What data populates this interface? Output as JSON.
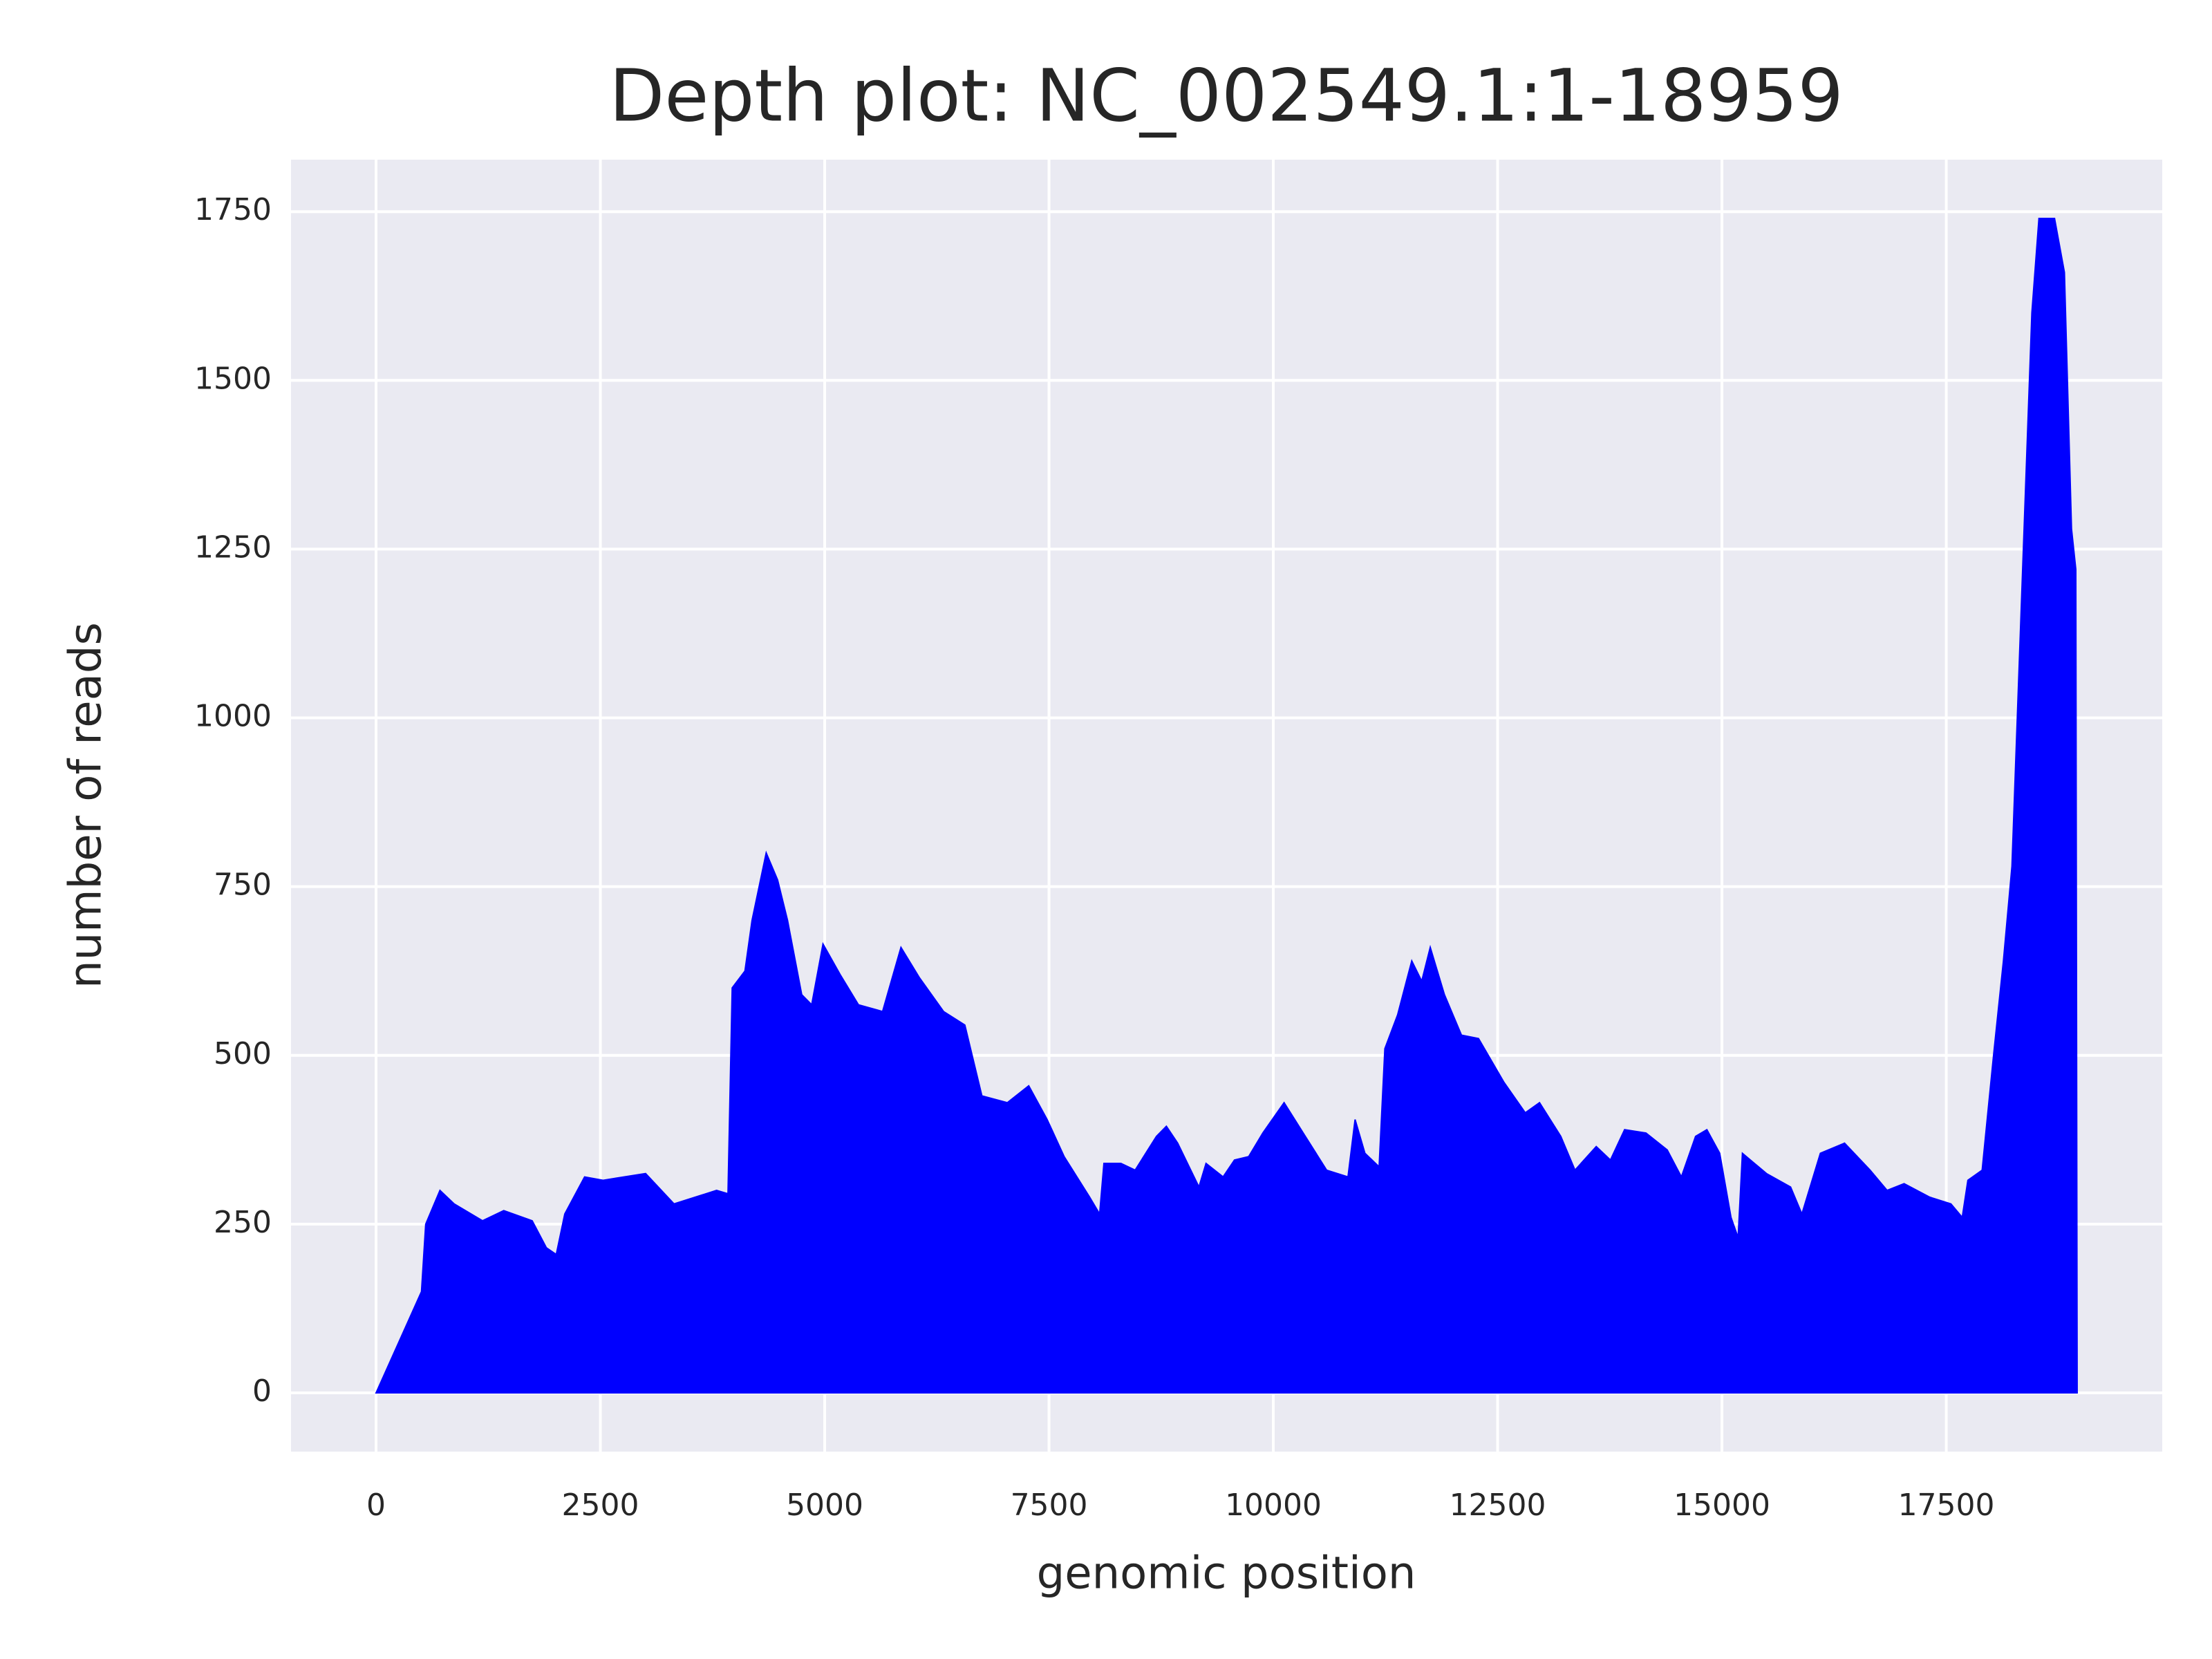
{
  "chart_data": {
    "type": "area",
    "title": "Depth plot: NC_002549.1:1-18959",
    "x_label": "genomic position",
    "y_label": "number of reads",
    "color": "#0000ff",
    "grid": true,
    "x": [
      0,
      506,
      553,
      712,
      870,
      1186,
      1423,
      1740,
      1898,
      2008,
      2103,
      2324,
      2530,
      3004,
      3321,
      3795,
      3922,
      3969,
      4111,
      4190,
      4348,
      4475,
      4586,
      4744,
      4855,
      4981,
      5171,
      5376,
      5645,
      5850,
      6056,
      6325,
      6562,
      6752,
      7036,
      7274,
      7479,
      7669,
      7953,
      8064,
      8112,
      8301,
      8460,
      8697,
      8808,
      8934,
      9171,
      9250,
      9440,
      9567,
      9725,
      9883,
      10120,
      10357,
      10594,
      10832,
      10911,
      11021,
      11179,
      11243,
      11385,
      11543,
      11654,
      11749,
      11907,
      12097,
      12287,
      12571,
      12808,
      12967,
      13204,
      13362,
      13599,
      13757,
      13915,
      14153,
      14390,
      14548,
      14706,
      14832,
      14975,
      15101,
      15180,
      15228,
      15496,
      15765,
      15891,
      16097,
      16366,
      16651,
      16841,
      17030,
      17315,
      17552,
      17678,
      17741,
      17900,
      18027,
      18137,
      18232,
      18343,
      18454,
      18533,
      18707,
      18817,
      18896,
      18944,
      18959
    ],
    "values": [
      0,
      150,
      250,
      300,
      280,
      255,
      270,
      255,
      215,
      205,
      265,
      320,
      315,
      325,
      280,
      300,
      295,
      600,
      625,
      700,
      800,
      760,
      700,
      590,
      575,
      665,
      620,
      575,
      565,
      660,
      615,
      565,
      545,
      440,
      430,
      455,
      405,
      350,
      290,
      265,
      340,
      340,
      330,
      380,
      395,
      370,
      305,
      340,
      320,
      345,
      350,
      385,
      430,
      380,
      330,
      320,
      405,
      355,
      335,
      510,
      560,
      640,
      610,
      660,
      590,
      530,
      525,
      460,
      415,
      430,
      380,
      330,
      365,
      345,
      390,
      385,
      360,
      320,
      380,
      390,
      355,
      260,
      230,
      355,
      325,
      305,
      265,
      355,
      370,
      330,
      300,
      310,
      290,
      280,
      260,
      315,
      330,
      500,
      640,
      780,
      1190,
      1600,
      1740,
      1740,
      1660,
      1280,
      1220,
      0
    ],
    "xlim": [
      -948,
      19907
    ],
    "ylim": [
      -87,
      1827
    ],
    "xticks": [
      0,
      2500,
      5000,
      7500,
      10000,
      12500,
      15000,
      17500
    ],
    "yticks": [
      0,
      250,
      500,
      750,
      1000,
      1250,
      1500,
      1750
    ]
  }
}
